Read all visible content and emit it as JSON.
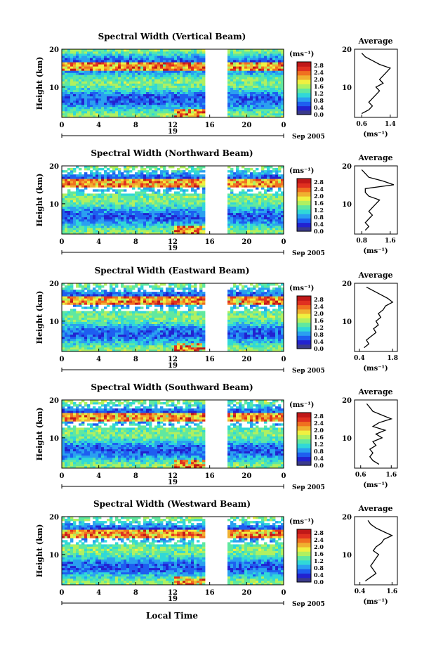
{
  "figure": {
    "day_label": "19",
    "month_year_label": "Sep 2005",
    "xlabel": "Local Time",
    "colorbar_unit": "(ms⁻¹)",
    "avg_unit": "(ms⁻¹)",
    "avg_title": "Average",
    "height_label": "Height (km)",
    "x_ticks": [
      "0",
      "4",
      "8",
      "12",
      "16",
      "20",
      "0"
    ],
    "y_ticks": [
      "20",
      "10"
    ],
    "colorbar_ticks": [
      "2.8",
      "2.4",
      "2.0",
      "1.6",
      "1.2",
      "0.8",
      "0.4",
      "0.0"
    ],
    "palette": [
      "#3a3a8c",
      "#2222d0",
      "#1e5ef0",
      "#2aa0f0",
      "#30d8d8",
      "#60e8a0",
      "#b0f060",
      "#f0f040",
      "#f0b030",
      "#f07020",
      "#e03020",
      "#c01818"
    ]
  },
  "chart_data": [
    {
      "type": "heatmap",
      "title": "Spectral Width (Vertical Beam)",
      "xlabel": "Local Time",
      "ylabel": "Height (km)",
      "xlim": [
        0,
        24
      ],
      "ylim": [
        2,
        20
      ],
      "data_gap_hours": [
        15.5,
        18.0
      ],
      "colorbar_range": [
        0.0,
        3.0
      ],
      "avg_profile": {
        "xticks": [
          "0.6",
          "1.4"
        ],
        "xlim": [
          0.4,
          1.6
        ],
        "height": [
          3,
          4,
          5,
          6,
          7,
          8,
          9,
          10,
          11,
          12,
          13,
          14,
          15,
          16,
          17,
          18,
          19
        ],
        "value": [
          0.6,
          0.8,
          0.9,
          0.8,
          0.9,
          1.0,
          1.1,
          1.0,
          1.2,
          1.1,
          1.2,
          1.3,
          1.4,
          1.1,
          0.9,
          0.7,
          0.6
        ]
      }
    },
    {
      "type": "heatmap",
      "title": "Spectral Width (Northward Beam)",
      "xlabel": "Local Time",
      "ylabel": "Height (km)",
      "xlim": [
        0,
        24
      ],
      "ylim": [
        2,
        20
      ],
      "data_gap_hours": [
        15.5,
        18.0
      ],
      "colorbar_range": [
        0.0,
        3.0
      ],
      "avg_profile": {
        "xticks": [
          "0.8",
          "1.6"
        ],
        "xlim": [
          0.6,
          1.8
        ],
        "height": [
          3,
          4,
          5,
          6,
          7,
          8,
          9,
          10,
          11,
          12,
          13,
          14,
          15,
          16,
          17,
          18,
          19
        ],
        "value": [
          0.9,
          1.0,
          0.9,
          1.0,
          1.1,
          1.0,
          1.1,
          1.2,
          1.3,
          1.0,
          0.9,
          0.9,
          1.7,
          1.4,
          1.0,
          0.9,
          0.8
        ]
      }
    },
    {
      "type": "heatmap",
      "title": "Spectral Width (Eastward Beam)",
      "xlabel": "Local Time",
      "ylabel": "Height (km)",
      "xlim": [
        0,
        24
      ],
      "ylim": [
        2,
        20
      ],
      "data_gap_hours": [
        15.5,
        18.0
      ],
      "colorbar_range": [
        0.0,
        3.0
      ],
      "avg_profile": {
        "xticks": [
          "0.4",
          "1.8"
        ],
        "xlim": [
          0.2,
          2.0
        ],
        "height": [
          3,
          4,
          5,
          6,
          7,
          8,
          9,
          10,
          11,
          12,
          13,
          14,
          15,
          16,
          17,
          18,
          19
        ],
        "value": [
          0.6,
          0.8,
          0.7,
          0.9,
          1.1,
          1.0,
          1.2,
          1.1,
          1.3,
          1.2,
          1.4,
          1.5,
          1.8,
          1.6,
          1.3,
          1.0,
          0.7
        ]
      }
    },
    {
      "type": "heatmap",
      "title": "Spectral Width (Southward Beam)",
      "xlabel": "Local Time",
      "ylabel": "Height (km)",
      "xlim": [
        0,
        24
      ],
      "ylim": [
        2,
        20
      ],
      "data_gap_hours": [
        15.5,
        18.0
      ],
      "colorbar_range": [
        0.0,
        3.0
      ],
      "avg_profile": {
        "xticks": [
          "0.6",
          "1.6"
        ],
        "xlim": [
          0.4,
          1.8
        ],
        "height": [
          3,
          4,
          5,
          6,
          7,
          8,
          9,
          10,
          11,
          12,
          13,
          14,
          15,
          16,
          17,
          18,
          19
        ],
        "value": [
          1.2,
          1.0,
          0.9,
          1.0,
          0.9,
          1.1,
          1.0,
          1.3,
          1.1,
          1.4,
          1.0,
          1.2,
          1.6,
          1.3,
          1.0,
          0.9,
          0.8
        ]
      }
    },
    {
      "type": "heatmap",
      "title": "Spectral Width (Westward Beam)",
      "xlabel": "Local Time",
      "ylabel": "Height (km)",
      "xlim": [
        0,
        24
      ],
      "ylim": [
        2,
        20
      ],
      "data_gap_hours": [
        15.5,
        18.0
      ],
      "colorbar_range": [
        0.0,
        3.0
      ],
      "avg_profile": {
        "xticks": [
          "0.4",
          "1.6"
        ],
        "xlim": [
          0.2,
          1.8
        ],
        "height": [
          3,
          4,
          5,
          6,
          7,
          8,
          9,
          10,
          11,
          12,
          13,
          14,
          15,
          16,
          17,
          18,
          19
        ],
        "value": [
          0.6,
          0.8,
          1.0,
          0.9,
          0.8,
          0.9,
          1.0,
          1.1,
          0.9,
          1.0,
          1.2,
          1.3,
          1.6,
          1.3,
          1.0,
          0.8,
          0.7
        ]
      }
    }
  ]
}
